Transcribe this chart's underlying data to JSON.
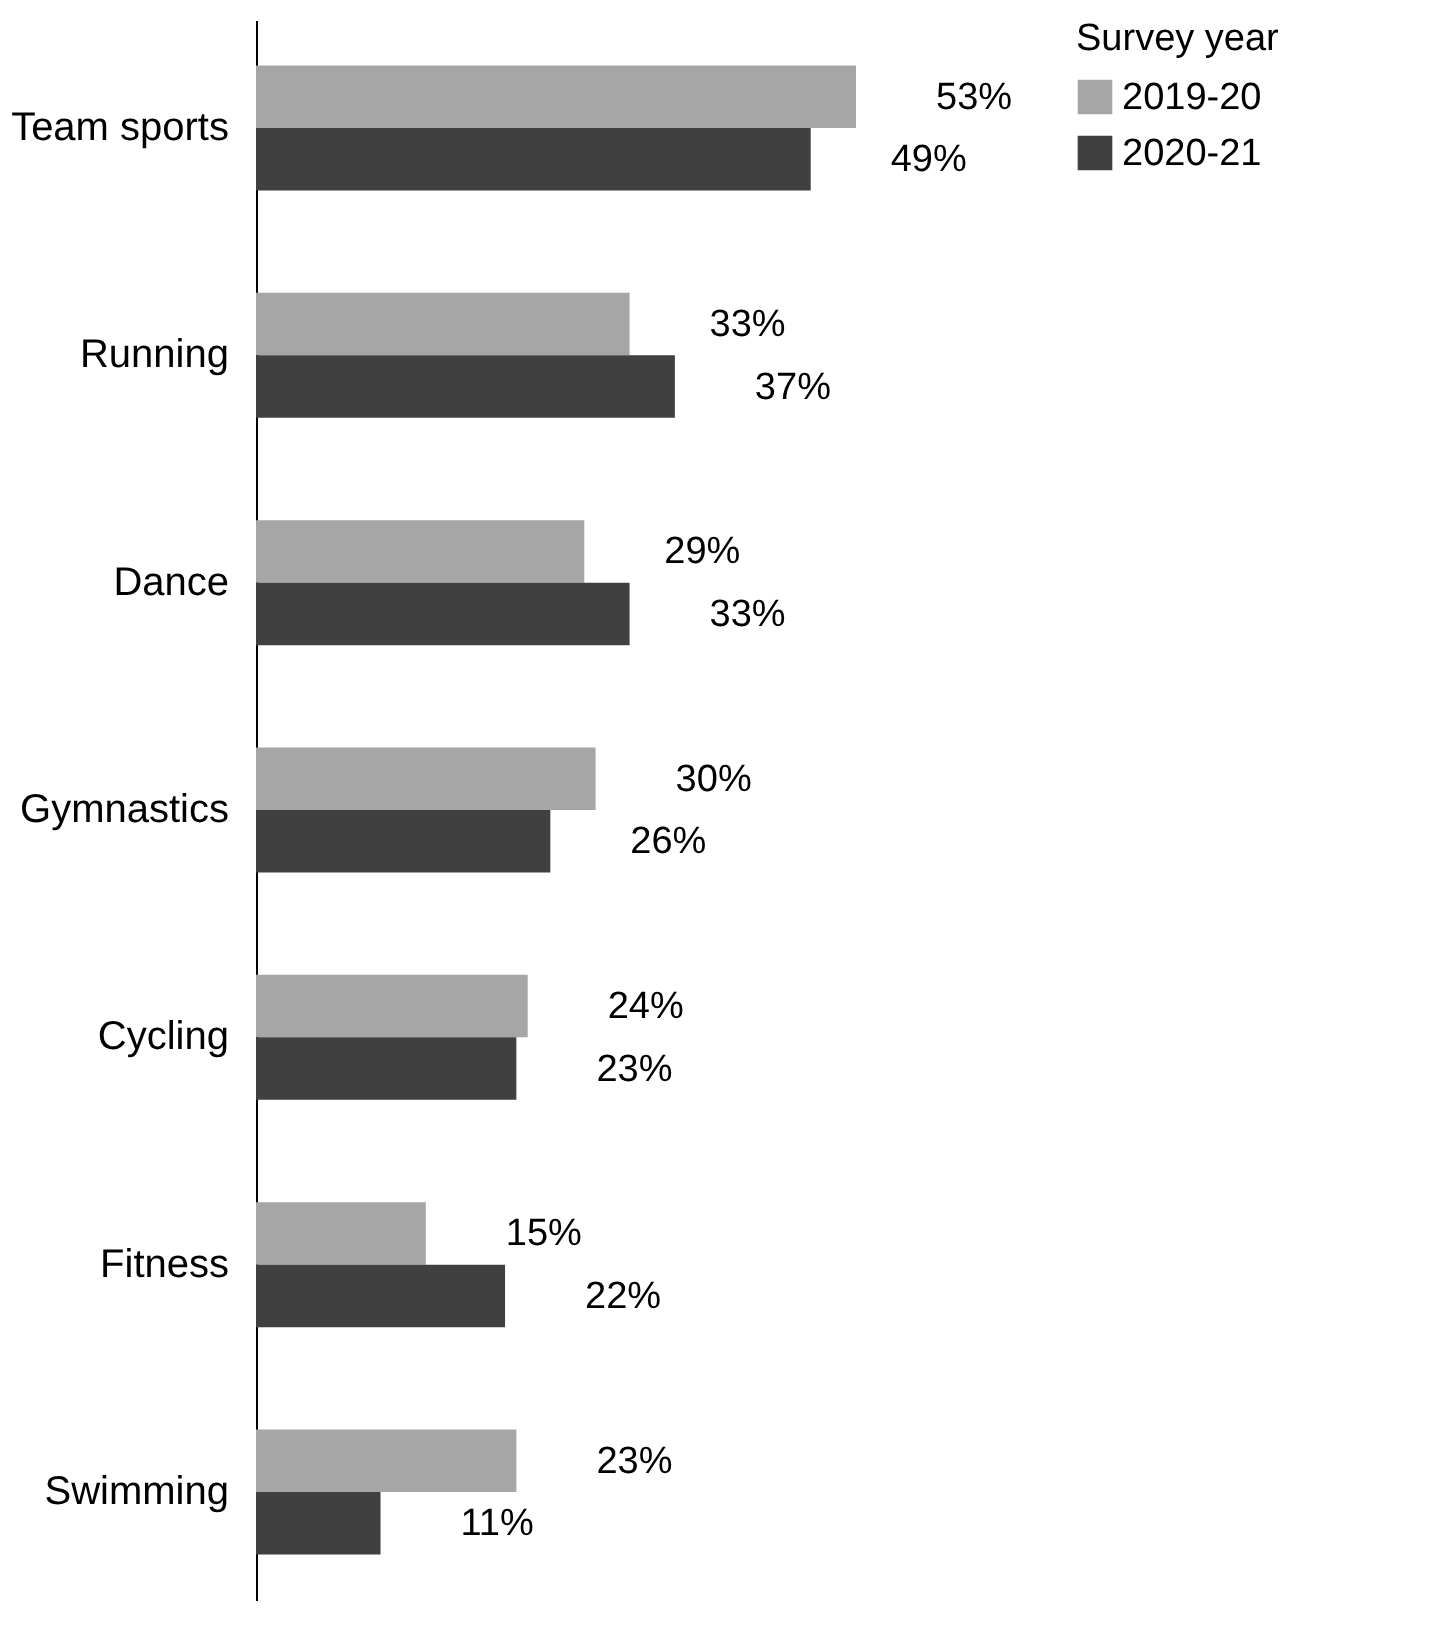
{
  "chart_data": {
    "type": "bar",
    "orientation": "horizontal",
    "legend_title": "Survey year",
    "legend": "top right",
    "categories": [
      "Team sports",
      "Running",
      "Dance",
      "Gymnastics",
      "Cycling",
      "Fitness",
      "Swimming"
    ],
    "series": [
      {
        "name": "2019-20",
        "color": "#a6a6a6",
        "values": [
          53,
          33,
          29,
          30,
          24,
          15,
          23
        ],
        "value_labels": [
          "53%",
          "33%",
          "29%",
          "30%",
          "24%",
          "15%",
          "23%"
        ]
      },
      {
        "name": "2020-21",
        "color": "#404040",
        "values": [
          49,
          37,
          33,
          26,
          23,
          22,
          11
        ],
        "value_labels": [
          "49%",
          "37%",
          "33%",
          "26%",
          "23%",
          "22%",
          "11%"
        ]
      }
    ],
    "tick_labels": "y"
  }
}
